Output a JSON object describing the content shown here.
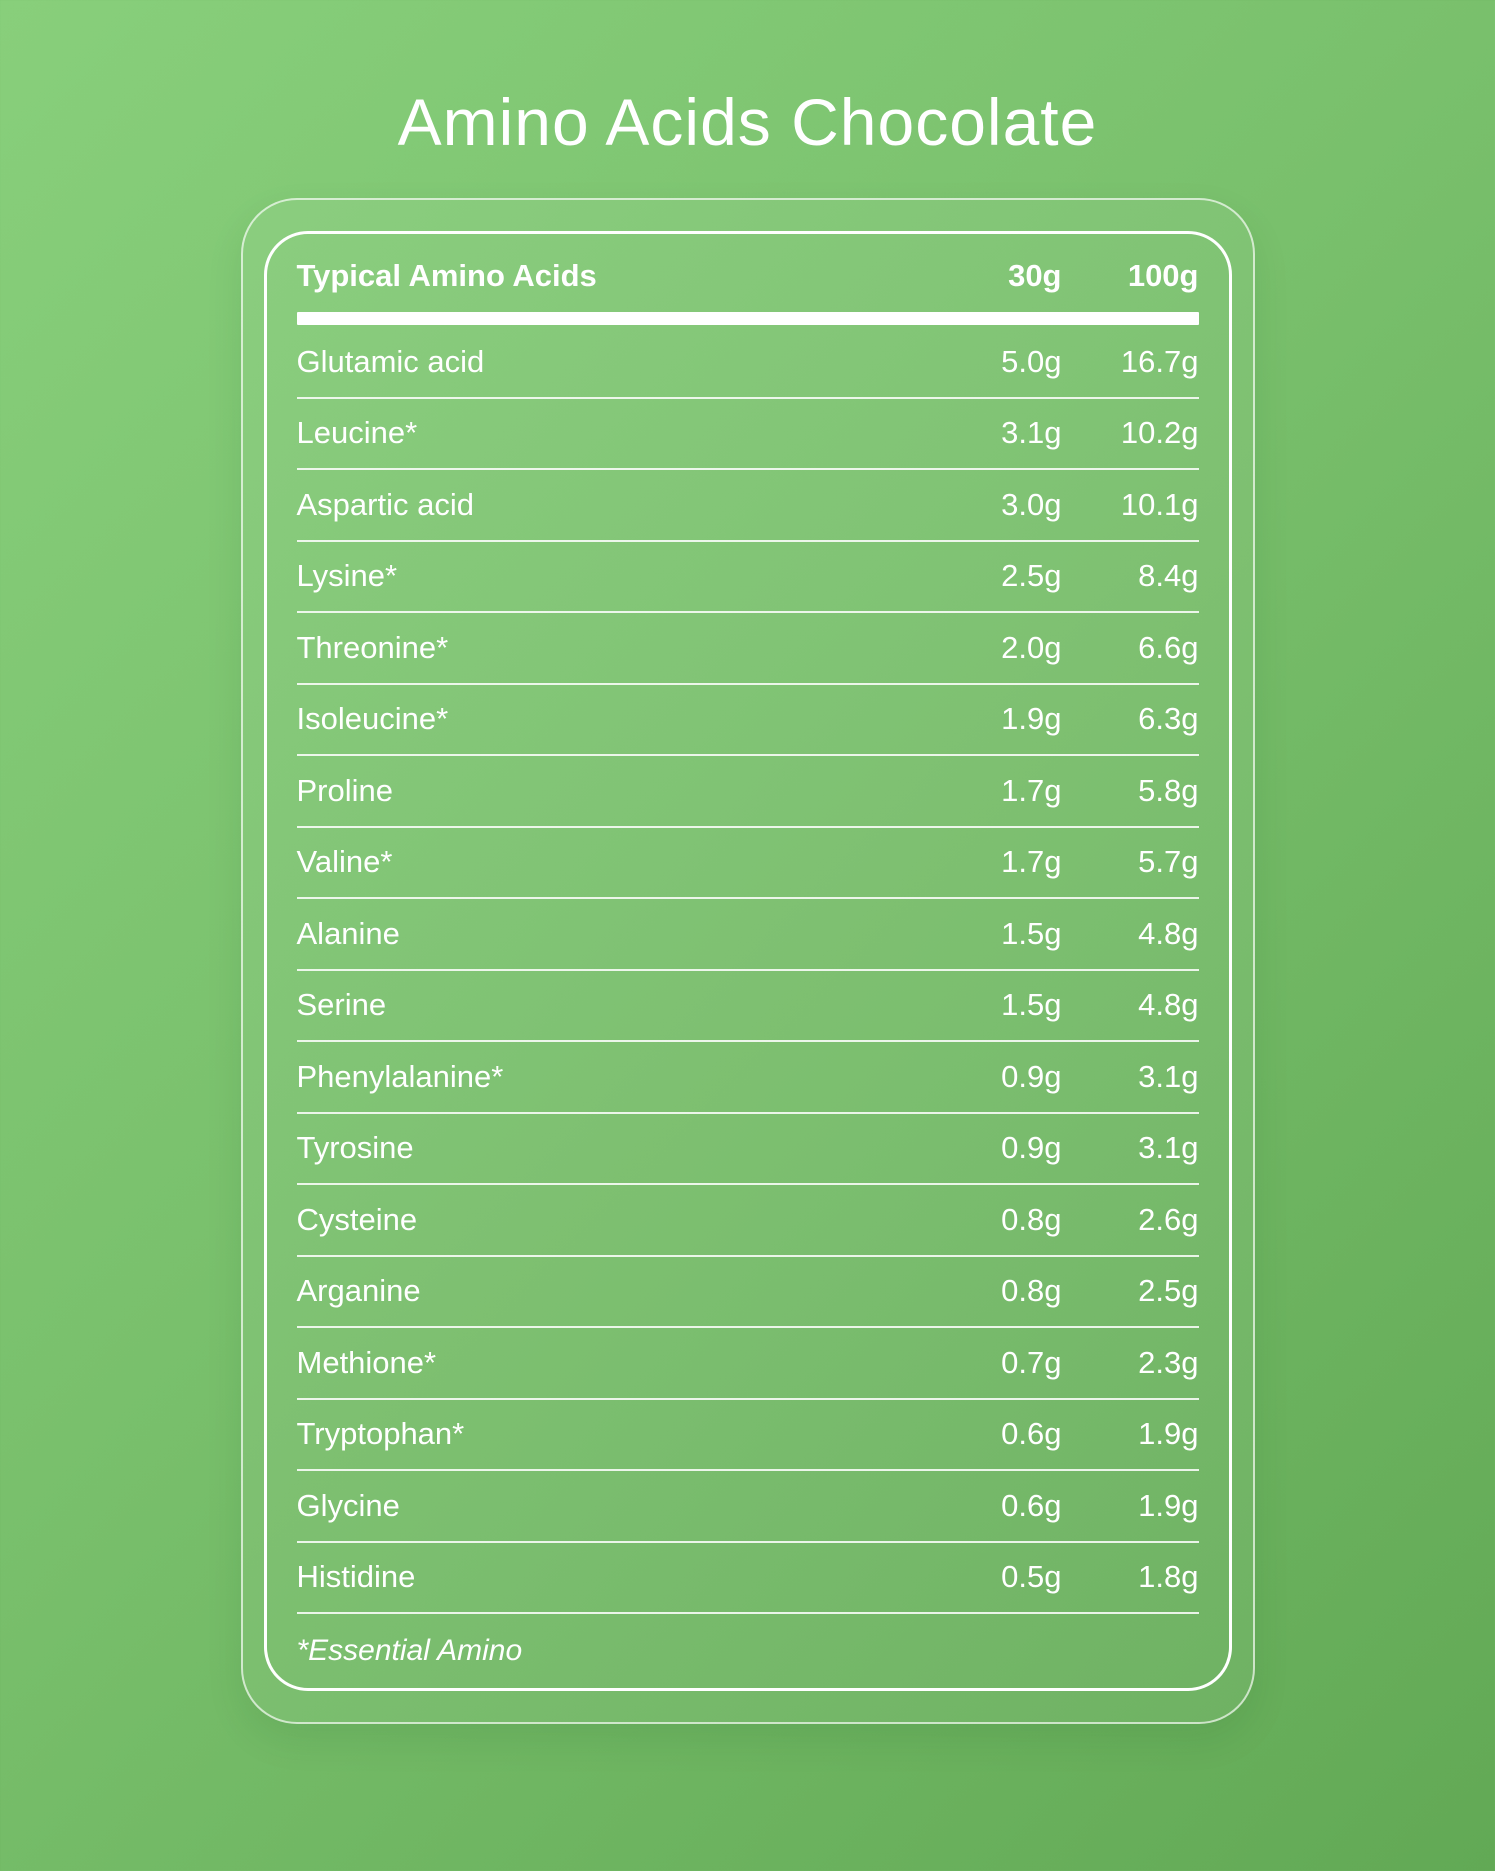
{
  "title": "Amino Acids Chocolate",
  "table": {
    "header": {
      "name": "Typical Amino Acids",
      "col_30g": "30g",
      "col_100g": "100g"
    },
    "rows": [
      {
        "name": "Glutamic acid",
        "v30": "5.0g",
        "v100": "16.7g"
      },
      {
        "name": "Leucine*",
        "v30": "3.1g",
        "v100": "10.2g"
      },
      {
        "name": "Aspartic acid",
        "v30": "3.0g",
        "v100": "10.1g"
      },
      {
        "name": "Lysine*",
        "v30": "2.5g",
        "v100": "8.4g"
      },
      {
        "name": "Threonine*",
        "v30": "2.0g",
        "v100": "6.6g"
      },
      {
        "name": "Isoleucine*",
        "v30": "1.9g",
        "v100": "6.3g"
      },
      {
        "name": "Proline",
        "v30": "1.7g",
        "v100": "5.8g"
      },
      {
        "name": "Valine*",
        "v30": "1.7g",
        "v100": "5.7g"
      },
      {
        "name": "Alanine",
        "v30": "1.5g",
        "v100": "4.8g"
      },
      {
        "name": "Serine",
        "v30": "1.5g",
        "v100": "4.8g"
      },
      {
        "name": "Phenylalanine*",
        "v30": "0.9g",
        "v100": "3.1g"
      },
      {
        "name": "Tyrosine",
        "v30": "0.9g",
        "v100": "3.1g"
      },
      {
        "name": "Cysteine",
        "v30": "0.8g",
        "v100": "2.6g"
      },
      {
        "name": "Arganine",
        "v30": "0.8g",
        "v100": "2.5g"
      },
      {
        "name": "Methione*",
        "v30": "0.7g",
        "v100": "2.3g"
      },
      {
        "name": "Tryptophan*",
        "v30": "0.6g",
        "v100": "1.9g"
      },
      {
        "name": "Glycine",
        "v30": "0.6g",
        "v100": "1.9g"
      },
      {
        "name": "Histidine",
        "v30": "0.5g",
        "v100": "1.8g"
      }
    ],
    "footnote": "*Essential Amino"
  },
  "colors": {
    "background_gradient_start": "#88cf7b",
    "background_gradient_end": "#62a955",
    "text": "#ffffff",
    "card_border": "#ffffff"
  },
  "chart_data": {
    "type": "table",
    "title": "Amino Acids Chocolate",
    "columns": [
      "Typical Amino Acids",
      "30g",
      "100g"
    ],
    "rows": [
      [
        "Glutamic acid",
        5.0,
        16.7
      ],
      [
        "Leucine*",
        3.1,
        10.2
      ],
      [
        "Aspartic acid",
        3.0,
        10.1
      ],
      [
        "Lysine*",
        2.5,
        8.4
      ],
      [
        "Threonine*",
        2.0,
        6.6
      ],
      [
        "Isoleucine*",
        1.9,
        6.3
      ],
      [
        "Proline",
        1.7,
        5.8
      ],
      [
        "Valine*",
        1.7,
        5.7
      ],
      [
        "Alanine",
        1.5,
        4.8
      ],
      [
        "Serine",
        1.5,
        4.8
      ],
      [
        "Phenylalanine*",
        0.9,
        3.1
      ],
      [
        "Tyrosine",
        0.9,
        3.1
      ],
      [
        "Cysteine",
        0.8,
        2.6
      ],
      [
        "Arganine",
        0.8,
        2.5
      ],
      [
        "Methione*",
        0.7,
        2.3
      ],
      [
        "Tryptophan*",
        0.6,
        1.9
      ],
      [
        "Glycine",
        0.6,
        1.9
      ],
      [
        "Histidine",
        0.5,
        1.8
      ]
    ],
    "units": "g",
    "footnote": "*Essential Amino"
  }
}
